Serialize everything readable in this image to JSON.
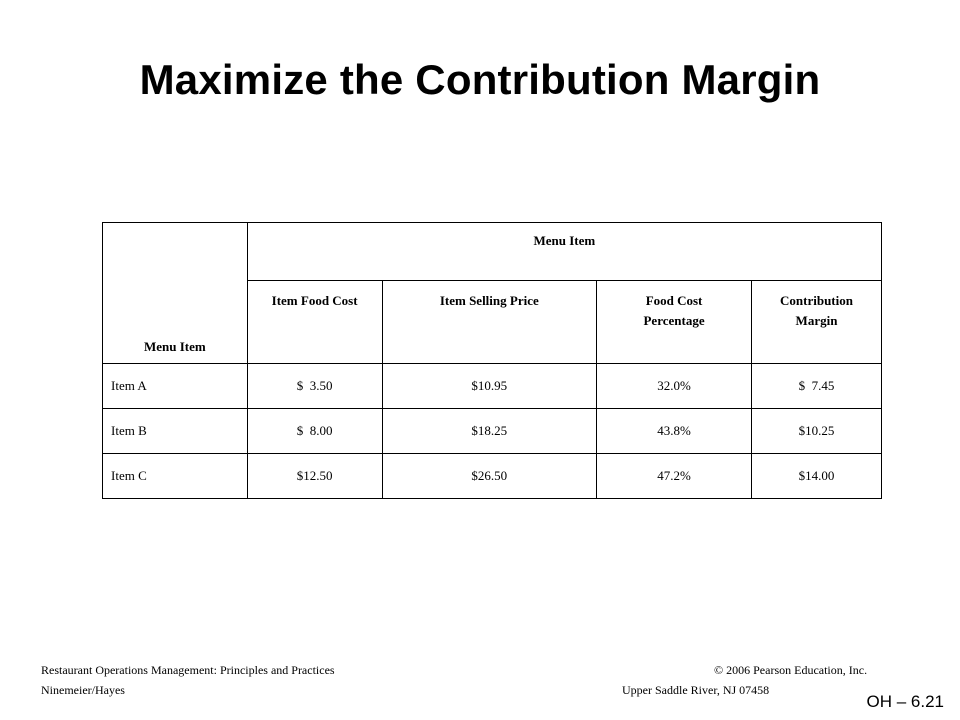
{
  "title": "Maximize the Contribution Margin",
  "table": {
    "corner_header": "Menu Item",
    "group_header": "Menu Item",
    "columns": [
      "Item Food Cost",
      "Item Selling Price",
      "Food Cost Percentage",
      "Contribution Margin"
    ],
    "rows": [
      {
        "name": "Item A",
        "food_cost": "$  3.50",
        "selling_price": "$10.95",
        "food_cost_pct": "32.0%",
        "contribution_margin": "$  7.45"
      },
      {
        "name": "Item B",
        "food_cost": "$  8.00",
        "selling_price": "$18.25",
        "food_cost_pct": "43.8%",
        "contribution_margin": "$10.25"
      },
      {
        "name": "Item C",
        "food_cost": "$12.50",
        "selling_price": "$26.50",
        "food_cost_pct": "47.2%",
        "contribution_margin": "$14.00"
      }
    ]
  },
  "footer": {
    "book_title": "Restaurant Operations Management: Principles and Practices",
    "authors": "Ninemeier/Hayes",
    "copyright": "© 2006 Pearson Education, Inc.",
    "publisher_address": "Upper Saddle River, NJ 07458"
  },
  "slide_number": "OH – 6.21"
}
